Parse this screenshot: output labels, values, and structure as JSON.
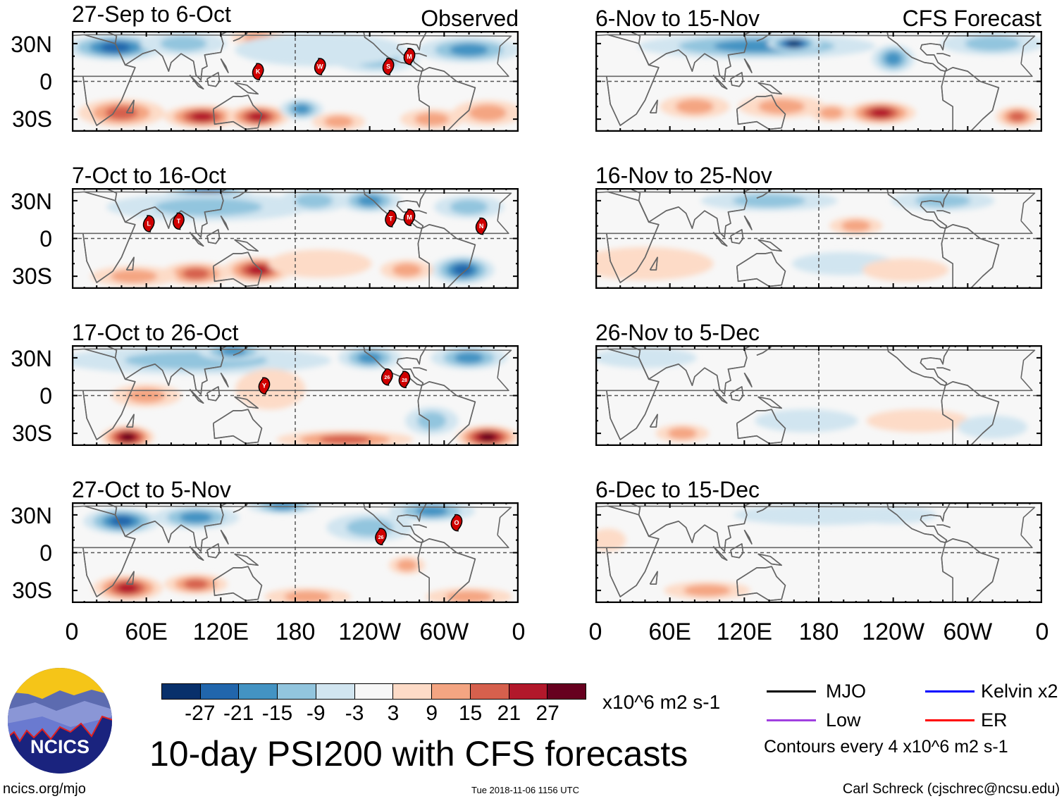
{
  "figure": {
    "title": "10-day PSI200 with CFS forecasts",
    "observed_label": "Observed",
    "forecast_label": "CFS Forecast",
    "website": "ncics.org/mjo",
    "timestamp": "Tue 2018-11-06 1156 UTC",
    "author": "Carl Schreck (cjschrec@ncsu.edu)",
    "logo_text": "NCICS"
  },
  "colorbar": {
    "units": "x10^6 m2 s-1",
    "labels": [
      "-27",
      "-21",
      "-15",
      "-9",
      "-3",
      "3",
      "9",
      "15",
      "21",
      "27"
    ],
    "colors": [
      "#08306b",
      "#2166ac",
      "#4393c3",
      "#92c5de",
      "#d1e5f0",
      "#f7f7f7",
      "#fddbc7",
      "#f4a582",
      "#d6604d",
      "#b2182b",
      "#67001f"
    ]
  },
  "legend": {
    "items": [
      {
        "label": "MJO",
        "color": "#000000"
      },
      {
        "label": "Low",
        "color": "#a040e0"
      },
      {
        "label": "Kelvin x2",
        "color": "#0000ff"
      },
      {
        "label": "ER",
        "color": "#ff0000"
      }
    ],
    "contour_note": "Contours every 4 x10^6 m2 s-1"
  },
  "axes": {
    "lat_labels": [
      "30N",
      "0",
      "30S"
    ],
    "lon_labels": [
      "0",
      "60E",
      "120E",
      "180",
      "120W",
      "60W",
      "0"
    ]
  },
  "chart_data": {
    "type": "heatmap",
    "variable": "200-hPa streamfunction anomaly",
    "lon_range": [
      0,
      360
    ],
    "lat_range": [
      -40,
      40
    ],
    "panels": [
      {
        "title": "27-Sep to 6-Oct",
        "kind": "observed",
        "anomalies": [
          {
            "lon": 35,
            "lat": 27,
            "value": -21,
            "rx": 30,
            "ry": 9
          },
          {
            "lon": 90,
            "lat": 30,
            "value": -9,
            "rx": 25,
            "ry": 8
          },
          {
            "lon": 150,
            "lat": 35,
            "value": 9,
            "rx": 15,
            "ry": 6
          },
          {
            "lon": 245,
            "lat": 18,
            "value": -9,
            "rx": 25,
            "ry": 10
          },
          {
            "lon": 200,
            "lat": 25,
            "value": -3,
            "rx": 50,
            "ry": 12
          },
          {
            "lon": 320,
            "lat": 25,
            "value": -15,
            "rx": 30,
            "ry": 9
          },
          {
            "lon": 105,
            "lat": -28,
            "value": 21,
            "rx": 22,
            "ry": 8
          },
          {
            "lon": 150,
            "lat": -28,
            "value": 21,
            "rx": 18,
            "ry": 8
          },
          {
            "lon": 40,
            "lat": -25,
            "value": 15,
            "rx": 25,
            "ry": 10
          },
          {
            "lon": 185,
            "lat": -22,
            "value": -15,
            "rx": 12,
            "ry": 7
          },
          {
            "lon": 215,
            "lat": -32,
            "value": 9,
            "rx": 15,
            "ry": 6
          },
          {
            "lon": 290,
            "lat": -30,
            "value": 9,
            "rx": 18,
            "ry": 7
          },
          {
            "lon": 335,
            "lat": -25,
            "value": 9,
            "rx": 20,
            "ry": 9
          }
        ],
        "storms": [
          {
            "id": "K",
            "lon": 150,
            "lat": 8
          },
          {
            "id": "W",
            "lon": 200,
            "lat": 12
          },
          {
            "id": "S",
            "lon": 255,
            "lat": 12
          },
          {
            "id": "M",
            "lon": 272,
            "lat": 20
          }
        ]
      },
      {
        "title": "7-Oct to 16-Oct",
        "kind": "observed",
        "anomalies": [
          {
            "lon": 110,
            "lat": 34,
            "value": -27,
            "rx": 25,
            "ry": 8
          },
          {
            "lon": 110,
            "lat": 25,
            "value": -9,
            "rx": 60,
            "ry": 10
          },
          {
            "lon": 195,
            "lat": 30,
            "value": -9,
            "rx": 20,
            "ry": 8
          },
          {
            "lon": 240,
            "lat": 30,
            "value": -15,
            "rx": 18,
            "ry": 8
          },
          {
            "lon": 320,
            "lat": 25,
            "value": -9,
            "rx": 20,
            "ry": 8
          },
          {
            "lon": 150,
            "lat": -25,
            "value": 21,
            "rx": 20,
            "ry": 9
          },
          {
            "lon": 100,
            "lat": -28,
            "value": 15,
            "rx": 20,
            "ry": 8
          },
          {
            "lon": 50,
            "lat": -30,
            "value": 9,
            "rx": 25,
            "ry": 7
          },
          {
            "lon": 315,
            "lat": -25,
            "value": -21,
            "rx": 18,
            "ry": 10
          },
          {
            "lon": 270,
            "lat": -25,
            "value": 9,
            "rx": 15,
            "ry": 7
          },
          {
            "lon": 200,
            "lat": -20,
            "value": 3,
            "rx": 30,
            "ry": 10
          }
        ],
        "storms": [
          {
            "id": "L",
            "lon": 62,
            "lat": 12
          },
          {
            "id": "T",
            "lon": 86,
            "lat": 14
          },
          {
            "id": "T",
            "lon": 257,
            "lat": 16
          },
          {
            "id": "M",
            "lon": 272,
            "lat": 17
          },
          {
            "id": "N",
            "lon": 330,
            "lat": 10
          }
        ]
      },
      {
        "title": "17-Oct to 26-Oct",
        "kind": "observed",
        "anomalies": [
          {
            "lon": 100,
            "lat": 28,
            "value": -9,
            "rx": 80,
            "ry": 10
          },
          {
            "lon": 130,
            "lat": 35,
            "value": -15,
            "rx": 20,
            "ry": 6
          },
          {
            "lon": 240,
            "lat": 30,
            "value": -15,
            "rx": 18,
            "ry": 8
          },
          {
            "lon": 320,
            "lat": 30,
            "value": -15,
            "rx": 22,
            "ry": 8
          },
          {
            "lon": 45,
            "lat": -33,
            "value": 27,
            "rx": 15,
            "ry": 8
          },
          {
            "lon": 335,
            "lat": -33,
            "value": 27,
            "rx": 18,
            "ry": 8
          },
          {
            "lon": 220,
            "lat": -35,
            "value": 15,
            "rx": 40,
            "ry": 6
          },
          {
            "lon": 60,
            "lat": 0,
            "value": 9,
            "rx": 20,
            "ry": 8
          },
          {
            "lon": 290,
            "lat": -20,
            "value": -9,
            "rx": 15,
            "ry": 10
          },
          {
            "lon": 160,
            "lat": 5,
            "value": 3,
            "rx": 20,
            "ry": 15
          }
        ],
        "storms": [
          {
            "id": "Y",
            "lon": 155,
            "lat": 8
          },
          {
            "id": "26",
            "lon": 254,
            "lat": 15
          },
          {
            "id": "28",
            "lon": 268,
            "lat": 13
          }
        ]
      },
      {
        "title": "27-Oct to 5-Nov",
        "kind": "observed",
        "anomalies": [
          {
            "lon": 40,
            "lat": 25,
            "value": -21,
            "rx": 22,
            "ry": 9
          },
          {
            "lon": 100,
            "lat": 28,
            "value": -15,
            "rx": 25,
            "ry": 8
          },
          {
            "lon": 170,
            "lat": 37,
            "value": -15,
            "rx": 20,
            "ry": 5
          },
          {
            "lon": 240,
            "lat": 20,
            "value": -9,
            "rx": 25,
            "ry": 10
          },
          {
            "lon": 290,
            "lat": 33,
            "value": -15,
            "rx": 25,
            "ry": 7
          },
          {
            "lon": 45,
            "lat": -28,
            "value": 21,
            "rx": 20,
            "ry": 9
          },
          {
            "lon": 100,
            "lat": -25,
            "value": 15,
            "rx": 18,
            "ry": 7
          },
          {
            "lon": 190,
            "lat": -35,
            "value": 9,
            "rx": 25,
            "ry": 6
          },
          {
            "lon": 270,
            "lat": -10,
            "value": 9,
            "rx": 10,
            "ry": 6
          },
          {
            "lon": 320,
            "lat": -35,
            "value": 9,
            "rx": 25,
            "ry": 6
          }
        ],
        "storms": [
          {
            "id": "26",
            "lon": 249,
            "lat": 13
          },
          {
            "id": "O",
            "lon": 310,
            "lat": 24
          }
        ]
      },
      {
        "title": "6-Nov to 15-Nov",
        "kind": "forecast",
        "anomalies": [
          {
            "lon": 130,
            "lat": 28,
            "value": -15,
            "rx": 70,
            "ry": 9
          },
          {
            "lon": 160,
            "lat": 30,
            "value": -27,
            "rx": 15,
            "ry": 5
          },
          {
            "lon": 240,
            "lat": 18,
            "value": -15,
            "rx": 12,
            "ry": 10
          },
          {
            "lon": 320,
            "lat": 30,
            "value": -9,
            "rx": 30,
            "ry": 8
          },
          {
            "lon": 230,
            "lat": -25,
            "value": 21,
            "rx": 20,
            "ry": 8
          },
          {
            "lon": 150,
            "lat": -20,
            "value": 9,
            "rx": 25,
            "ry": 8
          },
          {
            "lon": 340,
            "lat": -28,
            "value": 15,
            "rx": 12,
            "ry": 7
          },
          {
            "lon": 80,
            "lat": -20,
            "value": 9,
            "rx": 20,
            "ry": 8
          },
          {
            "lon": 190,
            "lat": -25,
            "value": 9,
            "rx": 12,
            "ry": 6
          }
        ],
        "storms": []
      },
      {
        "title": "16-Nov to 25-Nov",
        "kind": "forecast",
        "anomalies": [
          {
            "lon": 140,
            "lat": 30,
            "value": -9,
            "rx": 40,
            "ry": 7
          },
          {
            "lon": 210,
            "lat": 10,
            "value": 9,
            "rx": 15,
            "ry": 6
          },
          {
            "lon": 280,
            "lat": 30,
            "value": -9,
            "rx": 30,
            "ry": 7
          },
          {
            "lon": 40,
            "lat": -20,
            "value": 3,
            "rx": 40,
            "ry": 12
          },
          {
            "lon": 200,
            "lat": -20,
            "value": -3,
            "rx": 30,
            "ry": 8
          },
          {
            "lon": 250,
            "lat": -25,
            "value": 3,
            "rx": 25,
            "ry": 8
          }
        ],
        "storms": []
      },
      {
        "title": "26-Nov to 5-Dec",
        "kind": "forecast",
        "anomalies": [
          {
            "lon": 40,
            "lat": 30,
            "value": -3,
            "rx": 30,
            "ry": 7
          },
          {
            "lon": 70,
            "lat": -30,
            "value": 9,
            "rx": 15,
            "ry": 6
          },
          {
            "lon": 170,
            "lat": -20,
            "value": -3,
            "rx": 30,
            "ry": 8
          },
          {
            "lon": 260,
            "lat": -20,
            "value": 3,
            "rx": 30,
            "ry": 8
          },
          {
            "lon": 320,
            "lat": -25,
            "value": -3,
            "rx": 20,
            "ry": 8
          }
        ],
        "storms": []
      },
      {
        "title": "6-Dec to 15-Dec",
        "kind": "forecast",
        "anomalies": [
          {
            "lon": 180,
            "lat": 30,
            "value": -3,
            "rx": 50,
            "ry": 7
          },
          {
            "lon": 90,
            "lat": -30,
            "value": 9,
            "rx": 25,
            "ry": 6
          },
          {
            "lon": 10,
            "lat": 10,
            "value": 3,
            "rx": 10,
            "ry": 8
          },
          {
            "lon": 240,
            "lat": 30,
            "value": -3,
            "rx": 25,
            "ry": 6
          }
        ],
        "storms": []
      }
    ]
  }
}
